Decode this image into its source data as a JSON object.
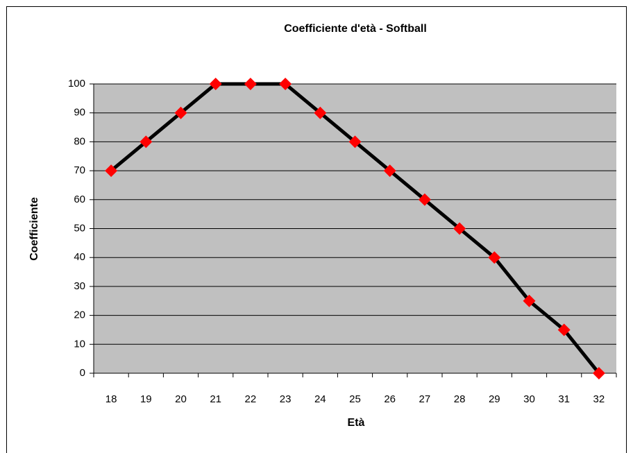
{
  "chart_data": {
    "type": "line",
    "title": "Coefficiente d'età - Softball",
    "xlabel": "Età",
    "ylabel": "Coefficiente",
    "categories": [
      "18",
      "19",
      "20",
      "21",
      "22",
      "23",
      "24",
      "25",
      "26",
      "27",
      "28",
      "29",
      "30",
      "31",
      "32"
    ],
    "series": [
      {
        "name": "Coefficiente",
        "color": "#000000",
        "marker_color": "#ff0000",
        "values": [
          70,
          80,
          90,
          100,
          100,
          100,
          90,
          80,
          70,
          60,
          50,
          40,
          25,
          15,
          0
        ]
      }
    ],
    "ylim": [
      0,
      100
    ],
    "yticks": [
      0,
      10,
      20,
      30,
      40,
      50,
      60,
      70,
      80,
      90,
      100
    ],
    "grid": true,
    "plot_background": "#c0c0c0",
    "legend": false
  }
}
